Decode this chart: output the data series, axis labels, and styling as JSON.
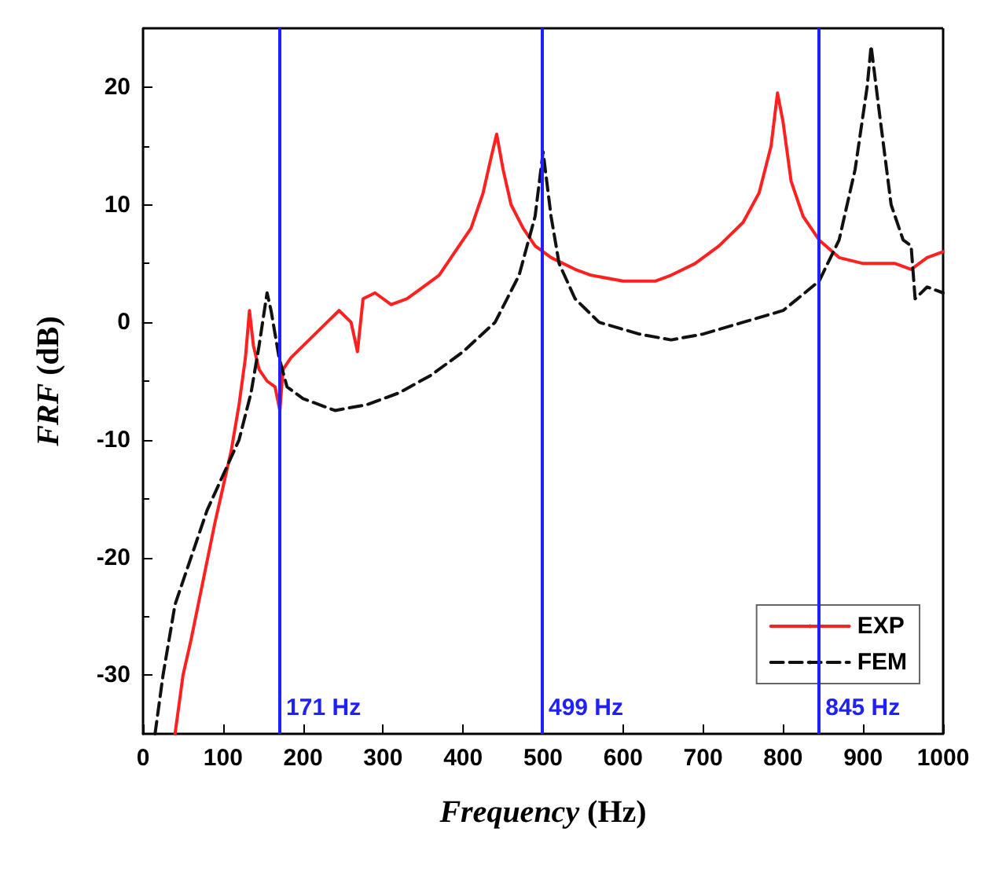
{
  "chart_data": {
    "type": "line",
    "xlabel": "Frequency (Hz)",
    "ylabel": "FRF (dB)",
    "xlim": [
      0,
      1000
    ],
    "ylim": [
      -35,
      25
    ],
    "xticks": [
      0,
      100,
      200,
      300,
      400,
      500,
      600,
      700,
      800,
      900,
      1000
    ],
    "yticks": [
      -30,
      -20,
      -10,
      0,
      10,
      20
    ],
    "grid": false,
    "legend": "bottom right",
    "marker": "none",
    "series": [
      {
        "name": "EXP",
        "color": "#ff2020",
        "line_style": "solid",
        "x": [
          40,
          50,
          60,
          75,
          90,
          100,
          110,
          120,
          128,
          133,
          138,
          145,
          155,
          165,
          171,
          175,
          185,
          200,
          215,
          230,
          245,
          260,
          268,
          275,
          290,
          310,
          330,
          350,
          370,
          390,
          410,
          425,
          435,
          442,
          450,
          460,
          475,
          490,
          510,
          540,
          560,
          600,
          640,
          660,
          690,
          720,
          750,
          770,
          785,
          793,
          800,
          810,
          825,
          845,
          870,
          900,
          940,
          960,
          980,
          1000
        ],
        "values": [
          -35,
          -30,
          -27,
          -22,
          -17,
          -14,
          -11,
          -7,
          -3,
          1,
          -2,
          -4,
          -5,
          -5.5,
          -7.5,
          -4,
          -3,
          -2,
          -1,
          0,
          1,
          0,
          -2.5,
          2,
          2.5,
          1.5,
          2,
          3,
          4,
          6,
          8,
          11,
          14,
          16,
          13,
          10,
          8,
          6.5,
          5.5,
          4.5,
          4,
          3.5,
          3.5,
          4,
          5,
          6.5,
          8.5,
          11,
          15,
          19.5,
          17,
          12,
          9,
          7,
          5.5,
          5,
          5,
          4.5,
          5.5,
          6
        ]
      },
      {
        "name": "FEM",
        "color": "#111111",
        "line_style": "dashed",
        "x": [
          15,
          25,
          40,
          60,
          80,
          100,
          120,
          135,
          145,
          155,
          160,
          170,
          180,
          200,
          240,
          280,
          320,
          360,
          400,
          440,
          470,
          490,
          500,
          510,
          520,
          540,
          570,
          620,
          660,
          700,
          750,
          800,
          845,
          870,
          890,
          905,
          910,
          920,
          935,
          950,
          960,
          965,
          980,
          1000
        ],
        "values": [
          -35,
          -30,
          -24,
          -20,
          -16,
          -13,
          -10,
          -6,
          -2,
          2.5,
          1,
          -3,
          -5.5,
          -6.5,
          -7.5,
          -7,
          -6,
          -4.5,
          -2.5,
          0,
          4,
          9,
          14.5,
          9,
          5,
          2,
          0,
          -1,
          -1.5,
          -1,
          0,
          1,
          3.5,
          7,
          13,
          20,
          23.5,
          18,
          10,
          7,
          6.5,
          2,
          3,
          2.5
        ]
      }
    ],
    "ref_lines": [
      {
        "axis": "x",
        "value": 171,
        "label": "171 Hz",
        "color": "#2020ff"
      },
      {
        "axis": "x",
        "value": 499,
        "label": "499 Hz",
        "color": "#2020ff"
      },
      {
        "axis": "x",
        "value": 845,
        "label": "845 Hz",
        "color": "#2020ff"
      }
    ]
  }
}
